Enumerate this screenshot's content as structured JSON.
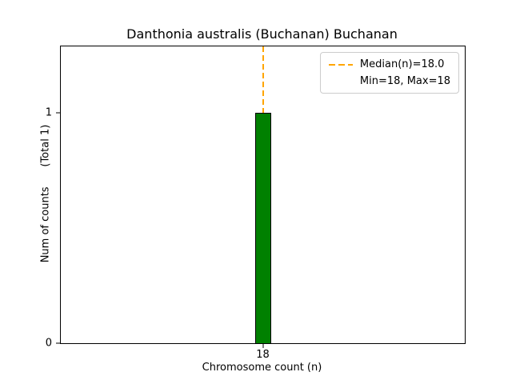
{
  "chart_data": {
    "type": "bar",
    "title": "Danthonia australis (Buchanan) Buchanan",
    "xlabel": "Chromosome count (n)",
    "ylabel": "Num of counts      (Total 1)",
    "categories": [
      18
    ],
    "values": [
      1
    ],
    "total_counts": 1,
    "median": 18.0,
    "min": 18,
    "max": 18,
    "ylim": [
      0,
      1.29
    ],
    "yticks": [
      0,
      1
    ],
    "xticks": [
      "18"
    ],
    "grid": false,
    "legend_position": "upper right",
    "legend": [
      "Median(n)=18.0",
      "Min=18, Max=18"
    ],
    "colors": {
      "bar_fill": "#008000",
      "bar_edge": "#000000",
      "median_line": "#FFA500",
      "legend_border": "#cccccc"
    }
  }
}
